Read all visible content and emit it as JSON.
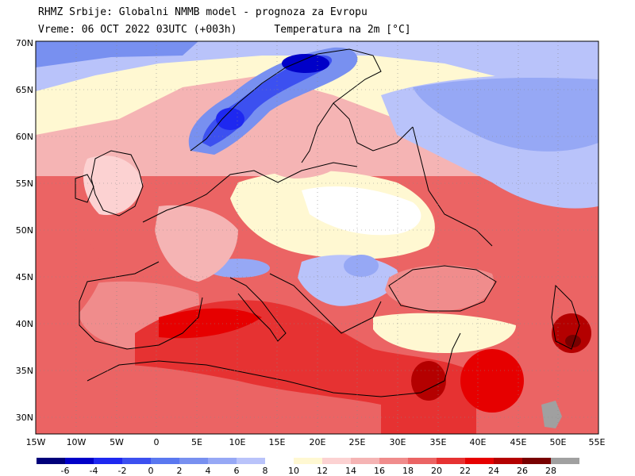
{
  "header": {
    "line1": "RHMZ Srbije: Globalni NMMB model - prognoza za Evropu",
    "line2_left": "Vreme: 06 OCT 2022 03UTC (+003h)",
    "line2_right": "Temperatura na 2m [°C]"
  },
  "axes": {
    "lat_labels": [
      "70N",
      "65N",
      "60N",
      "55N",
      "50N",
      "45N",
      "40N",
      "35N",
      "30N"
    ],
    "lon_labels": [
      "15W",
      "10W",
      "5W",
      "0",
      "5E",
      "10E",
      "15E",
      "20E",
      "25E",
      "30E",
      "35E",
      "40E",
      "45E",
      "50E",
      "55E"
    ]
  },
  "legend": {
    "labels": [
      "-6",
      "-4",
      "-2",
      "0",
      "2",
      "4",
      "6",
      "8",
      "10",
      "12",
      "14",
      "16",
      "18",
      "20",
      "22",
      "24",
      "26",
      "28"
    ],
    "colors": [
      "#00007a",
      "#0000c8",
      "#1e28f0",
      "#3c50f0",
      "#5a78f0",
      "#7890f0",
      "#96a8f5",
      "#b9c3fa",
      "#ffffff",
      "#fff8d2",
      "#fcd2d2",
      "#f5b4b4",
      "#f08c8c",
      "#eb6464",
      "#e63232",
      "#e60000",
      "#b40000",
      "#780000",
      "#a0a0a0"
    ]
  },
  "map": {
    "region": "Evropa",
    "variable": "Temperatura na 2m",
    "unit": "°C",
    "lon_range": [
      -15,
      55
    ],
    "lat_range": [
      28,
      70
    ]
  }
}
